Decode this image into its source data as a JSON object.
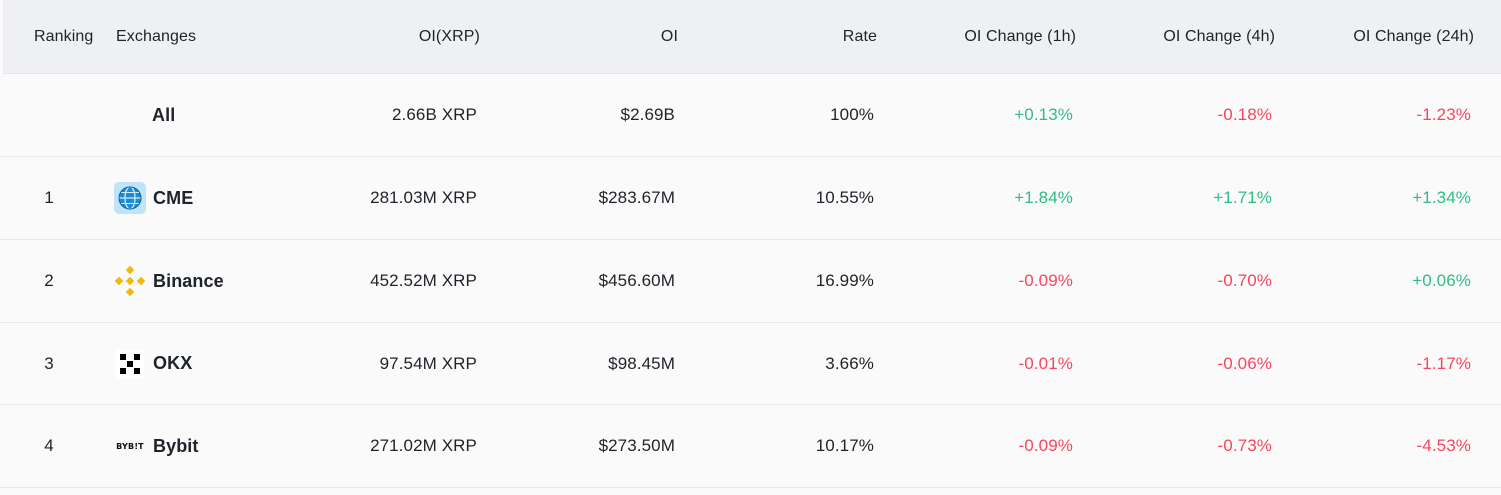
{
  "columns": {
    "ranking": "Ranking",
    "exchanges": "Exchanges",
    "oi_xrp": "OI(XRP)",
    "oi": "OI",
    "rate": "Rate",
    "oi_change_1h": "OI Change (1h)",
    "oi_change_4h": "OI Change (4h)",
    "oi_change_24h": "OI Change (24h)"
  },
  "rows": [
    {
      "rank": "",
      "name": "All",
      "logo": "",
      "oi_xrp": "2.66B XRP",
      "oi": "$2.69B",
      "rate": "100%",
      "h1": "+0.13%",
      "h4": "-0.18%",
      "h24": "-1.23%"
    },
    {
      "rank": "1",
      "name": "CME",
      "logo": "cme-globe-icon",
      "oi_xrp": "281.03M XRP",
      "oi": "$283.67M",
      "rate": "10.55%",
      "h1": "+1.84%",
      "h4": "+1.71%",
      "h24": "+1.34%"
    },
    {
      "rank": "2",
      "name": "Binance",
      "logo": "binance-icon",
      "oi_xrp": "452.52M XRP",
      "oi": "$456.60M",
      "rate": "16.99%",
      "h1": "-0.09%",
      "h4": "-0.70%",
      "h24": "+0.06%"
    },
    {
      "rank": "3",
      "name": "OKX",
      "logo": "okx-icon",
      "oi_xrp": "97.54M XRP",
      "oi": "$98.45M",
      "rate": "3.66%",
      "h1": "-0.01%",
      "h4": "-0.06%",
      "h24": "-1.17%"
    },
    {
      "rank": "4",
      "name": "Bybit",
      "logo": "bybit-icon",
      "logo_text": "BYB!T",
      "oi_xrp": "271.02M XRP",
      "oi": "$273.50M",
      "rate": "10.17%",
      "h1": "-0.09%",
      "h4": "-0.73%",
      "h24": "-4.53%"
    }
  ],
  "colors": {
    "positive": "#2ebd85",
    "negative": "#f6465d",
    "header_bg": "#eef0f3",
    "row_bg": "#fafafa",
    "binance_yellow": "#f0b90b"
  }
}
